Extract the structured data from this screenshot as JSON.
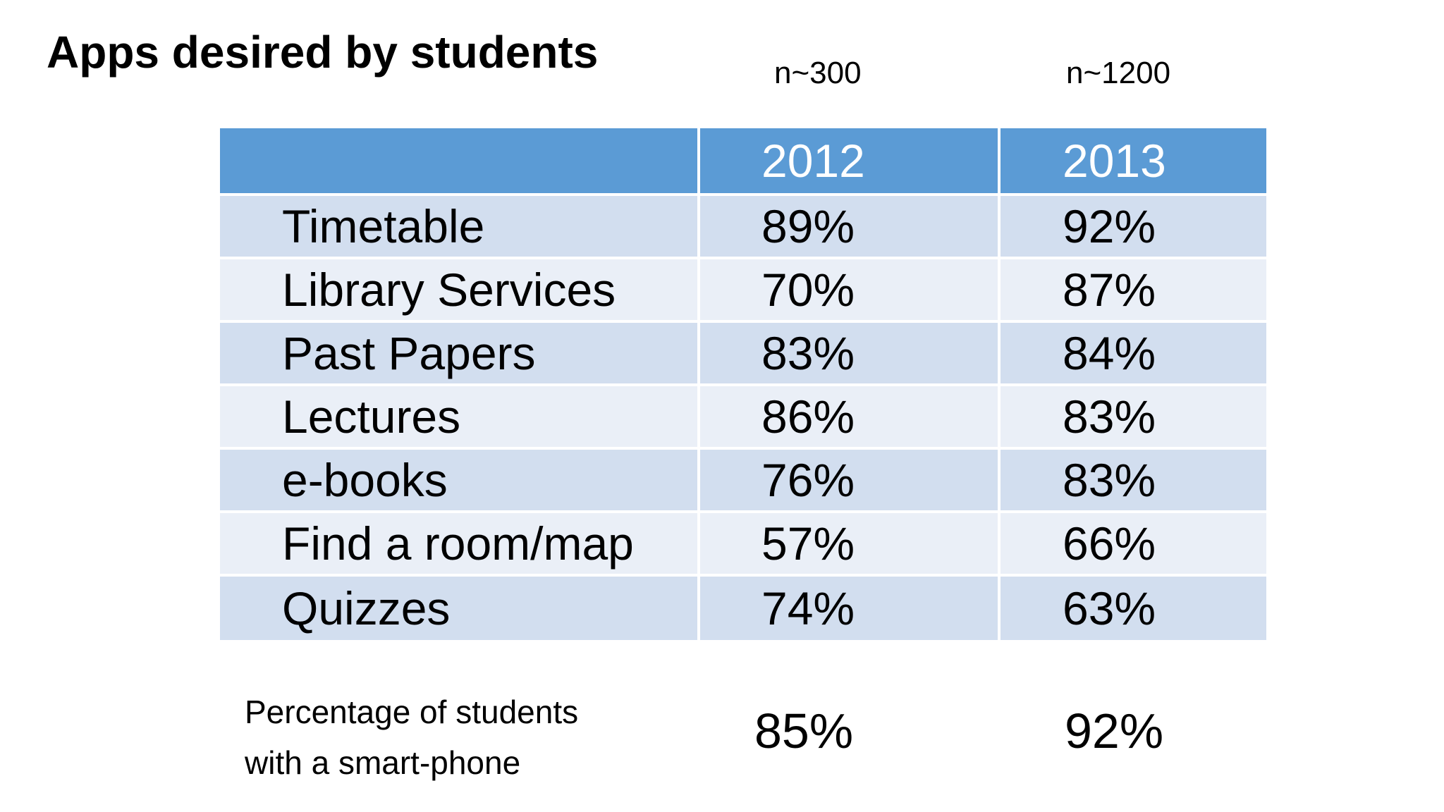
{
  "title": "Apps desired by students",
  "sample_sizes": {
    "y2012": "n~300",
    "y2013": "n~1200"
  },
  "table": {
    "header": {
      "label": "",
      "y2012": "2012",
      "y2013": "2013"
    },
    "rows": [
      {
        "label": "Timetable",
        "y2012": "89%",
        "y2013": "92%"
      },
      {
        "label": "Library Services",
        "y2012": "70%",
        "y2013": "87%"
      },
      {
        "label": "Past Papers",
        "y2012": "83%",
        "y2013": "84%"
      },
      {
        "label": "Lectures",
        "y2012": "86%",
        "y2013": "83%"
      },
      {
        "label": "e-books",
        "y2012": "76%",
        "y2013": "83%"
      },
      {
        "label": "Find a room/map",
        "y2012": "57%",
        "y2013": "66%"
      },
      {
        "label": "Quizzes",
        "y2012": "74%",
        "y2013": "63%"
      }
    ]
  },
  "smartphone": {
    "label_line1": "Percentage of students",
    "label_line2": "with a smart-phone",
    "y2012": "85%",
    "y2013": "92%"
  },
  "colors": {
    "header_bg": "#5b9bd5",
    "row_odd_bg": "#d2deef",
    "row_even_bg": "#eaeff7"
  }
}
